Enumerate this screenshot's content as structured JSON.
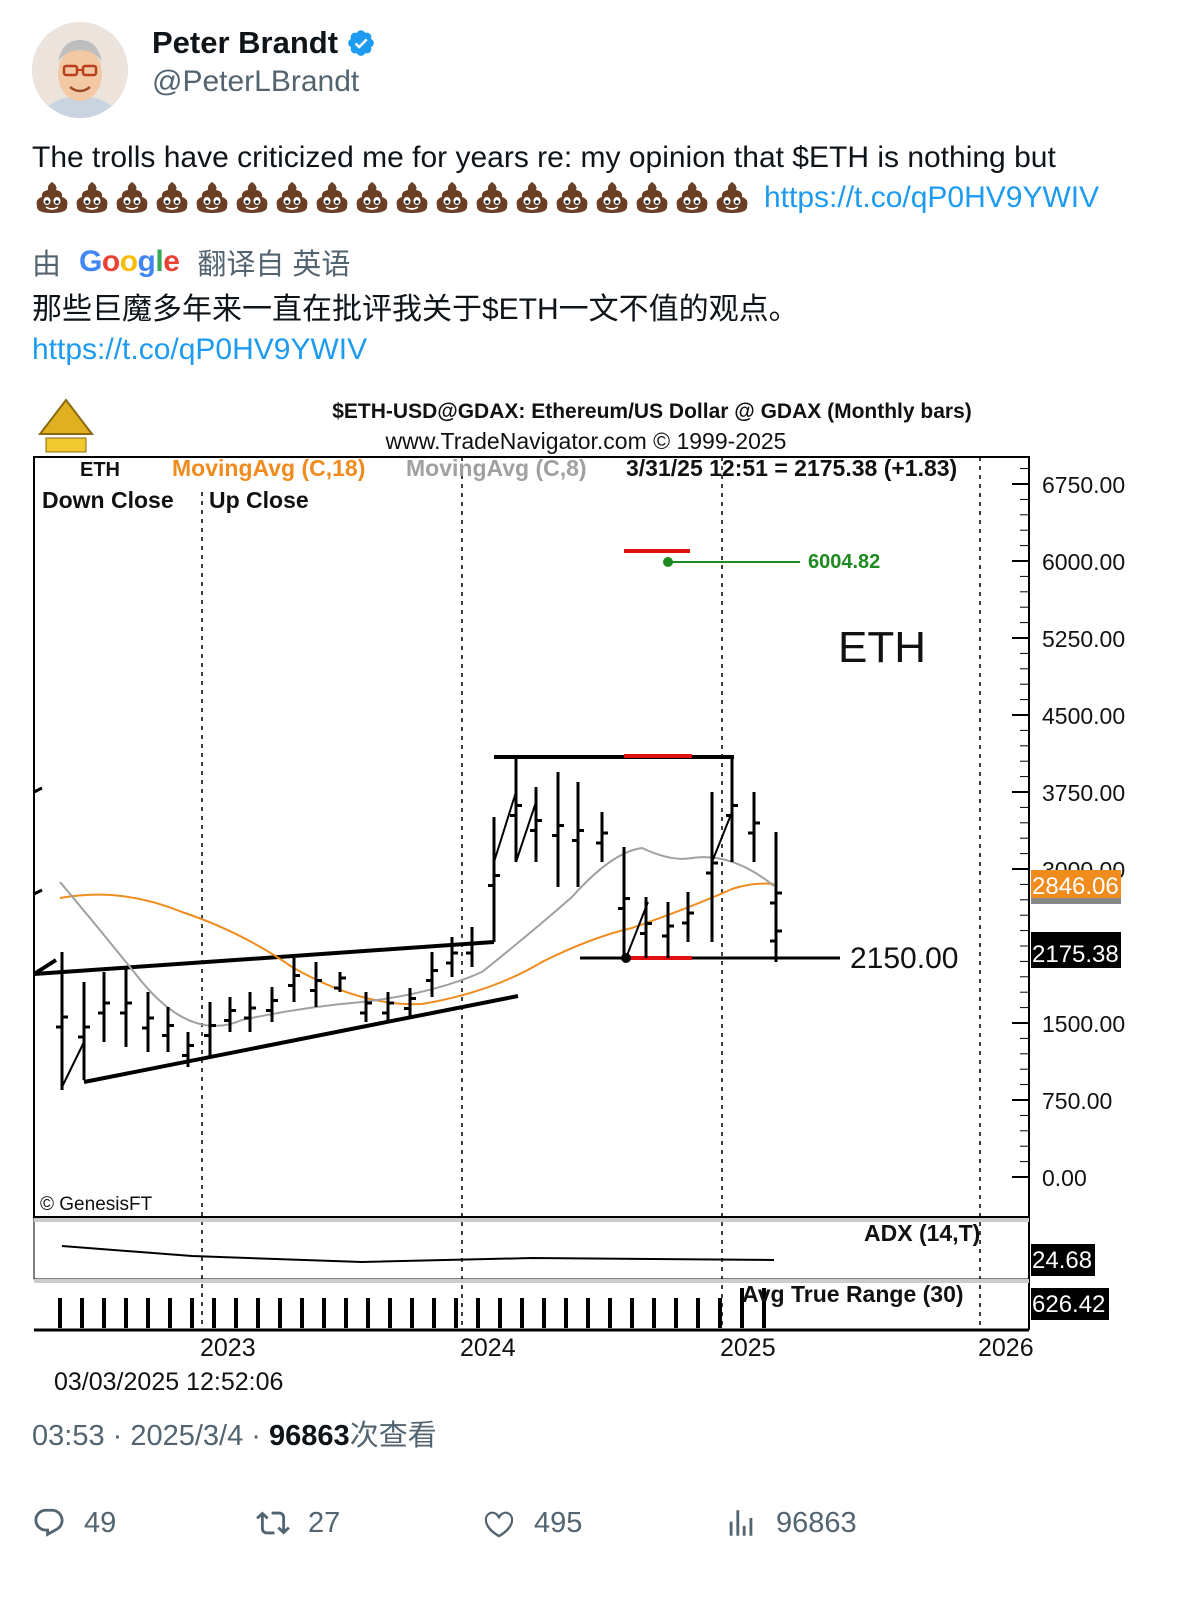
{
  "author": {
    "name": "Peter Brandt",
    "handle": "@PeterLBrandt",
    "verified": true
  },
  "tweet": {
    "text": "The trolls have criticized me for years re: my opinion that $ETH is nothing but",
    "emoji_name": "pile-of-poo",
    "emoji_count": 18,
    "link": "https://t.co/qP0HV9YWIV"
  },
  "translation": {
    "prefix": "由",
    "provider": "Google",
    "suffix": "翻译自 英语",
    "text": "那些巨魔多年来一直在批评我关于$ETH一文不值的观点。",
    "link": "https://t.co/qP0HV9YWIV"
  },
  "chart_image": {
    "title": "$ETH-USD@GDAX:  Ethereum/US Dollar @ GDAX  (Monthly bars)",
    "source": "www.TradeNavigator.com © 1999-2025",
    "ma18_label": "MovingAvg (C,18)",
    "ma8_label": "MovingAvg (C,8)",
    "quote": "3/31/25 12:51 = 2175.38 (+1.83)",
    "down_close": "Down Close",
    "up_close": "Up Close",
    "symbol_label": "ETH",
    "level_target": "6004.82",
    "level_support": "2150.00",
    "ma18_value": "2846.06",
    "last_value": "2175.38",
    "copyright": "© GenesisFT",
    "adx_label": "ADX (14,T)",
    "adx_value": "24.68",
    "atr_label": "Avg True Range (30)",
    "atr_value": "626.42",
    "timestamp": "03/03/2025 12:52:06",
    "colors": {
      "ma18": "#f08c1e",
      "ma8": "#a0a0a0",
      "target": "#1f8a1f",
      "red": "#e01010"
    }
  },
  "chart_data": {
    "type": "ohlc",
    "title": "$ETH-USD@GDAX:  Ethereum/US Dollar @ GDAX  (Monthly bars)",
    "y_ticks": [
      "6750.00",
      "6000.00",
      "5250.00",
      "4500.00",
      "3750.00",
      "3000.00",
      "1500.00",
      "750.00",
      "0.00"
    ],
    "x_ticks": [
      "2023",
      "2024",
      "2025",
      "2026"
    ],
    "ylim": [
      0,
      6750
    ],
    "series": [
      {
        "name": "MovingAvg (C,18)",
        "last": 2846.06
      },
      {
        "name": "ADX (14,T)",
        "last": 24.68
      },
      {
        "name": "Avg True Range (30)",
        "last": 626.42
      }
    ],
    "last_close": 2175.38,
    "horizontal_levels": [
      6004.82,
      2150.0
    ]
  },
  "meta": {
    "time": "03:53",
    "date": "2025/3/4",
    "views": "96863",
    "views_suffix": "次查看"
  },
  "actions": {
    "replies": "49",
    "reposts": "27",
    "likes": "495",
    "views": "96863"
  }
}
